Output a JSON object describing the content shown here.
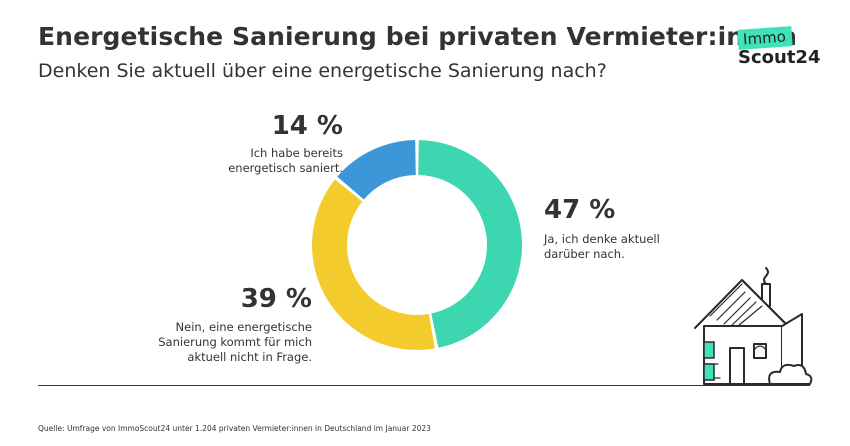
{
  "title": "Energetische Sanierung bei privaten Vermieter:innen",
  "subtitle": "Denken Sie aktuell über eine energetische Sanierung nach?",
  "logo": {
    "line1": "Immo",
    "line2": "Scout24",
    "accent": "#3ee3bb"
  },
  "source": "Quelle: Umfrage von ImmoScout24 unter 1.204 privaten Vermieter:innen in Deutschland im Januar 2023",
  "chart_data": {
    "type": "pie",
    "variant": "donut",
    "title": "Denken Sie aktuell über eine energetische Sanierung nach?",
    "slices": [
      {
        "label": "Ja, ich denke aktuell darüber nach.",
        "pct_label": "47 %",
        "value": 47,
        "color": "#3cd6b0"
      },
      {
        "label": "Nein, eine energetische Sanierung kommt für mich aktuell nicht in Frage.",
        "pct_label": "39 %",
        "value": 39,
        "color": "#f4cb2c"
      },
      {
        "label": "Ich habe bereits energetisch saniert.",
        "pct_label": "14 %",
        "value": 14,
        "color": "#3d96d8"
      }
    ],
    "desc_lines": [
      [
        "Ja, ich denke aktuell",
        "darüber nach."
      ],
      [
        "Nein, eine energetische",
        "Sanierung kommt für mich",
        "aktuell nicht in Frage."
      ],
      [
        "Ich habe bereits",
        "energetisch saniert."
      ]
    ]
  },
  "illustration": {
    "name": "house-illustration",
    "accent": "#3ee3bb"
  }
}
